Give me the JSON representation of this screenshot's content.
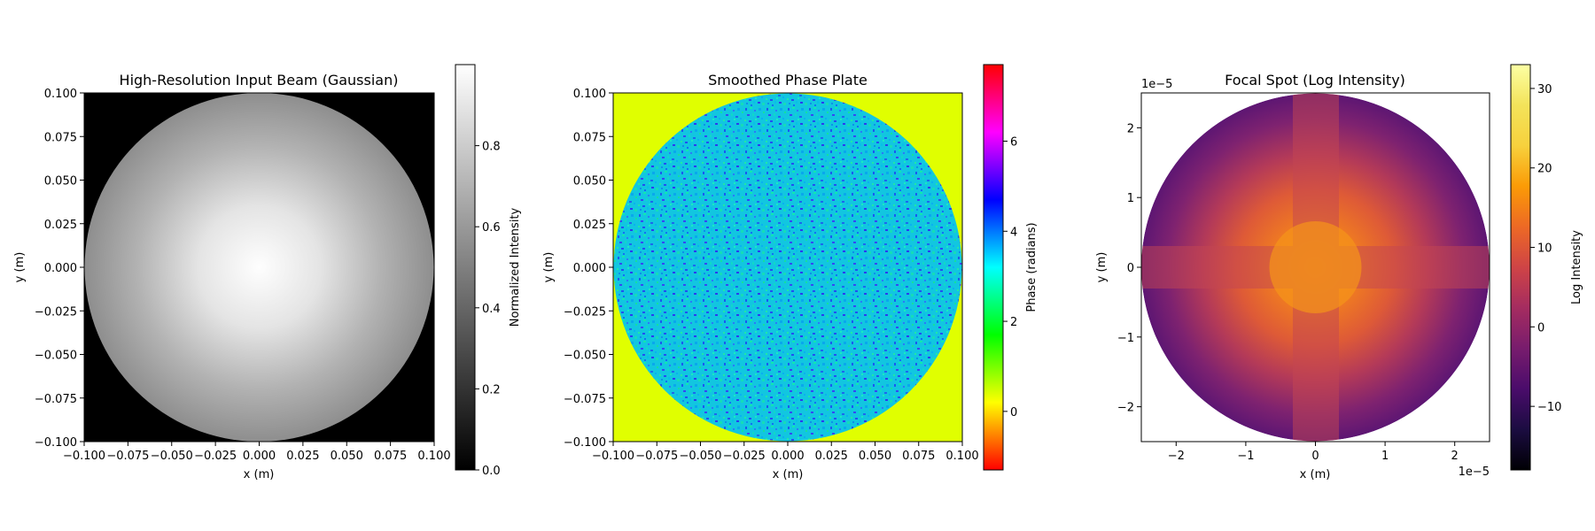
{
  "chart_data": [
    {
      "type": "heatmap",
      "title": "High-Resolution Input Beam (Gaussian)",
      "xlabel": "x (m)",
      "ylabel": "y (m)",
      "xlim": [
        -0.1,
        0.1
      ],
      "ylim": [
        -0.1,
        0.1
      ],
      "x_ticks": [
        -0.1,
        -0.075,
        -0.05,
        -0.025,
        0.0,
        0.025,
        0.05,
        0.075,
        0.1
      ],
      "y_ticks": [
        -0.1,
        -0.075,
        -0.05,
        -0.025,
        0.0,
        0.025,
        0.05,
        0.075,
        0.1
      ],
      "x_tick_labels": [
        "−0.100",
        "−0.075",
        "−0.050",
        "−0.025",
        "0.000",
        "0.025",
        "0.050",
        "0.075",
        "0.100"
      ],
      "y_tick_labels": [
        "−0.100",
        "−0.075",
        "−0.050",
        "−0.025",
        "0.000",
        "0.025",
        "0.050",
        "0.075",
        "0.100"
      ],
      "aperture_radius": 0.1,
      "outside_value": 0.0,
      "center_value": 1.0,
      "edge_value": 0.37,
      "colormap": "gray",
      "colorbar": {
        "label": "Normalized Intensity",
        "range": [
          0.0,
          1.0
        ],
        "ticks": [
          0.0,
          0.2,
          0.4,
          0.6,
          0.8
        ],
        "tick_labels": [
          "0.0",
          "0.2",
          "0.4",
          "0.6",
          "0.8"
        ]
      }
    },
    {
      "type": "heatmap",
      "title": "Smoothed Phase Plate",
      "xlabel": "x (m)",
      "ylabel": "y (m)",
      "xlim": [
        -0.1,
        0.1
      ],
      "ylim": [
        -0.1,
        0.1
      ],
      "x_ticks": [
        -0.1,
        -0.075,
        -0.05,
        -0.025,
        0.0,
        0.025,
        0.05,
        0.075,
        0.1
      ],
      "y_ticks": [
        -0.1,
        -0.075,
        -0.05,
        -0.025,
        0.0,
        0.025,
        0.05,
        0.075,
        0.1
      ],
      "x_tick_labels": [
        "−0.100",
        "−0.075",
        "−0.050",
        "−0.025",
        "0.000",
        "0.025",
        "0.050",
        "0.075",
        "0.100"
      ],
      "y_tick_labels": [
        "−0.100",
        "−0.075",
        "−0.050",
        "−0.025",
        "0.000",
        "0.025",
        "0.050",
        "0.075",
        "0.100"
      ],
      "aperture_radius": 0.1,
      "outside_value": 0.0,
      "inside_value_range": [
        2.0,
        4.2
      ],
      "colormap": "hsv",
      "colorbar": {
        "label": "Phase (radians)",
        "range": [
          -1.3,
          7.7
        ],
        "ticks": [
          0,
          2,
          4,
          6
        ],
        "tick_labels": [
          "0",
          "2",
          "4",
          "6"
        ]
      }
    },
    {
      "type": "heatmap",
      "title": "Focal Spot (Log Intensity)",
      "xlabel": "x (m)",
      "ylabel": "y (m)",
      "xlim": [
        -2.5,
        2.5
      ],
      "ylim": [
        -2.5,
        2.5
      ],
      "x_ticks": [
        -2,
        -1,
        0,
        1,
        2
      ],
      "y_ticks": [
        -2,
        -1,
        0,
        1,
        2
      ],
      "x_tick_labels": [
        "−2",
        "−1",
        "0",
        "1",
        "2"
      ],
      "y_tick_labels": [
        "−2",
        "−1",
        "0",
        "1",
        "2"
      ],
      "x_offset_text": "1e−5",
      "y_offset_text": "1e−5",
      "aperture_radius": 2.5,
      "peak_value": 24,
      "edge_value": -10,
      "colormap": "inferno",
      "colorbar": {
        "label": "Log Intensity",
        "range": [
          -18,
          33
        ],
        "ticks": [
          -10,
          0,
          10,
          20,
          30
        ],
        "tick_labels": [
          "−10",
          "0",
          "10",
          "20",
          "30"
        ]
      }
    }
  ]
}
